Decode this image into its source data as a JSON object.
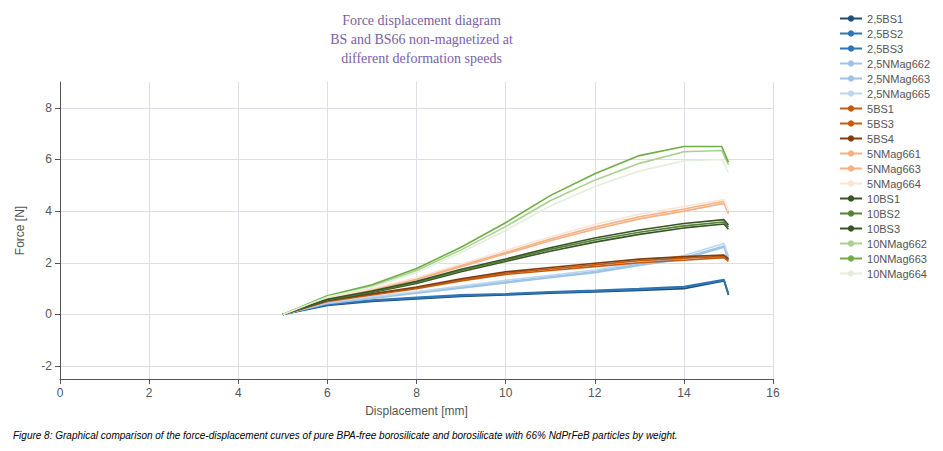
{
  "chart_data": {
    "type": "line",
    "title": "Force displacement diagram\nBS and BS66 non-magnetized at\ndifferent deformation speeds",
    "caption": "Figure 8: Graphical comparison of the force-displacement curves of pure BPA-free borosilicate and borosilicate with 66% NdPrFeB particles by weight.",
    "xlabel": "Displacement [mm]",
    "ylabel": "Force [N]",
    "xlim": [
      0,
      16
    ],
    "ylim": [
      -2.5,
      9
    ],
    "xticks": [
      0,
      2,
      4,
      6,
      8,
      10,
      12,
      14,
      16
    ],
    "yticks": [
      -2,
      0,
      2,
      4,
      6,
      8
    ],
    "grid": true,
    "legend": "upper right",
    "series": [
      {
        "name": "2,5BS1",
        "color": "#1F4E79",
        "x": [
          5.0,
          6.0,
          7.0,
          8.0,
          9.0,
          10.0,
          11.0,
          12.0,
          13.0,
          14.0,
          14.9,
          15.0
        ],
        "values": [
          0.0,
          0.35,
          0.5,
          0.6,
          0.7,
          0.75,
          0.82,
          0.87,
          0.93,
          1.0,
          1.3,
          0.75
        ]
      },
      {
        "name": "2,5BS2",
        "color": "#2E75B6",
        "x": [
          5.0,
          6.0,
          7.0,
          8.0,
          9.0,
          10.0,
          11.0,
          12.0,
          13.0,
          14.0,
          14.9,
          15.0
        ],
        "values": [
          0.0,
          0.38,
          0.53,
          0.63,
          0.73,
          0.78,
          0.85,
          0.9,
          0.97,
          1.05,
          1.32,
          0.78
        ]
      },
      {
        "name": "2,5BS3",
        "color": "#2F75B6",
        "x": [
          5.0,
          6.0,
          7.0,
          8.0,
          9.0,
          10.0,
          11.0,
          12.0,
          13.0,
          14.0,
          14.9,
          15.0
        ],
        "values": [
          0.0,
          0.4,
          0.56,
          0.66,
          0.76,
          0.8,
          0.88,
          0.93,
          1.0,
          1.08,
          1.35,
          0.8
        ]
      },
      {
        "name": "2,5NMag662",
        "color": "#9DC3E6",
        "x": [
          5.0,
          6.0,
          7.0,
          8.0,
          9.0,
          10.0,
          11.0,
          12.0,
          13.0,
          14.0,
          14.9,
          15.0
        ],
        "values": [
          0.0,
          0.42,
          0.62,
          0.82,
          1.02,
          1.22,
          1.42,
          1.62,
          1.9,
          2.15,
          2.6,
          2.1
        ]
      },
      {
        "name": "2,5NMag663",
        "color": "#9DC3E6",
        "x": [
          5.0,
          6.0,
          7.0,
          8.0,
          9.0,
          10.0,
          11.0,
          12.0,
          13.0,
          14.0,
          14.9,
          15.0
        ],
        "values": [
          0.0,
          0.44,
          0.65,
          0.85,
          1.05,
          1.26,
          1.46,
          1.66,
          1.95,
          2.2,
          2.65,
          2.15
        ]
      },
      {
        "name": "2,5NMag665",
        "color": "#BDD7EE",
        "x": [
          5.0,
          6.0,
          7.0,
          8.0,
          9.0,
          10.0,
          11.0,
          12.0,
          13.0,
          14.0,
          14.9,
          15.0
        ],
        "values": [
          0.0,
          0.46,
          0.68,
          0.88,
          1.1,
          1.32,
          1.52,
          1.72,
          2.0,
          2.28,
          2.75,
          2.25
        ]
      },
      {
        "name": "5BS1",
        "color": "#C55A11",
        "x": [
          5.0,
          6.0,
          7.0,
          8.0,
          9.0,
          10.0,
          11.0,
          12.0,
          13.0,
          14.0,
          14.9,
          15.0
        ],
        "values": [
          0.0,
          0.5,
          0.75,
          1.0,
          1.3,
          1.55,
          1.7,
          1.85,
          2.0,
          2.1,
          2.2,
          2.05
        ]
      },
      {
        "name": "5BS3",
        "color": "#C55A11",
        "x": [
          5.0,
          6.0,
          7.0,
          8.0,
          9.0,
          10.0,
          11.0,
          12.0,
          13.0,
          14.0,
          14.9,
          15.0
        ],
        "values": [
          0.0,
          0.52,
          0.78,
          1.03,
          1.34,
          1.6,
          1.76,
          1.92,
          2.08,
          2.18,
          2.25,
          2.1
        ]
      },
      {
        "name": "5BS4",
        "color": "#843C0C",
        "x": [
          5.0,
          6.0,
          7.0,
          8.0,
          9.0,
          10.0,
          11.0,
          12.0,
          13.0,
          14.0,
          14.9,
          15.0
        ],
        "values": [
          0.0,
          0.54,
          0.8,
          1.06,
          1.38,
          1.65,
          1.82,
          1.98,
          2.14,
          2.24,
          2.3,
          2.15
        ]
      },
      {
        "name": "5NMag661",
        "color": "#F4B183",
        "x": [
          5.0,
          6.0,
          7.0,
          8.0,
          9.0,
          10.0,
          11.0,
          12.0,
          13.0,
          14.0,
          14.9,
          15.0
        ],
        "values": [
          0.0,
          0.6,
          0.95,
          1.35,
          1.85,
          2.35,
          2.85,
          3.3,
          3.7,
          4.0,
          4.3,
          3.9
        ]
      },
      {
        "name": "5NMag663",
        "color": "#F4B183",
        "x": [
          5.0,
          6.0,
          7.0,
          8.0,
          9.0,
          10.0,
          11.0,
          12.0,
          13.0,
          14.0,
          14.9,
          15.0
        ],
        "values": [
          0.0,
          0.62,
          0.98,
          1.38,
          1.9,
          2.4,
          2.92,
          3.38,
          3.78,
          4.08,
          4.38,
          3.95
        ]
      },
      {
        "name": "5NMag664",
        "color": "#FCE4D6",
        "x": [
          5.0,
          6.0,
          7.0,
          8.0,
          9.0,
          10.0,
          11.0,
          12.0,
          13.0,
          14.0,
          14.9,
          15.0
        ],
        "values": [
          0.0,
          0.64,
          1.0,
          1.42,
          1.95,
          2.48,
          3.0,
          3.48,
          3.88,
          4.18,
          4.45,
          4.0
        ]
      },
      {
        "name": "10BS1",
        "color": "#375623",
        "x": [
          5.0,
          6.0,
          7.0,
          8.0,
          9.0,
          10.0,
          11.0,
          12.0,
          13.0,
          14.0,
          14.9,
          15.0
        ],
        "values": [
          0.0,
          0.55,
          0.85,
          1.2,
          1.65,
          2.05,
          2.45,
          2.8,
          3.1,
          3.35,
          3.5,
          3.3
        ]
      },
      {
        "name": "10BS2",
        "color": "#538135",
        "x": [
          5.0,
          6.0,
          7.0,
          8.0,
          9.0,
          10.0,
          11.0,
          12.0,
          13.0,
          14.0,
          14.9,
          15.0
        ],
        "values": [
          0.0,
          0.57,
          0.88,
          1.24,
          1.7,
          2.1,
          2.52,
          2.88,
          3.18,
          3.43,
          3.58,
          3.38
        ]
      },
      {
        "name": "10BS3",
        "color": "#375623",
        "x": [
          5.0,
          6.0,
          7.0,
          8.0,
          9.0,
          10.0,
          11.0,
          12.0,
          13.0,
          14.0,
          14.9,
          15.0
        ],
        "values": [
          0.0,
          0.59,
          0.91,
          1.28,
          1.75,
          2.15,
          2.58,
          2.96,
          3.27,
          3.52,
          3.67,
          3.46
        ]
      },
      {
        "name": "10NMag662",
        "color": "#A9D18E",
        "x": [
          5.0,
          6.0,
          7.0,
          8.0,
          9.0,
          10.0,
          11.0,
          12.0,
          13.0,
          14.0,
          14.85,
          15.0
        ],
        "values": [
          0.0,
          0.7,
          1.1,
          1.7,
          2.5,
          3.4,
          4.4,
          5.2,
          5.85,
          6.3,
          6.35,
          5.8
        ]
      },
      {
        "name": "10NMag663",
        "color": "#70AD47",
        "x": [
          5.0,
          6.0,
          7.0,
          8.0,
          9.0,
          10.0,
          11.0,
          12.0,
          13.0,
          14.0,
          14.85,
          15.0
        ],
        "values": [
          0.0,
          0.72,
          1.15,
          1.78,
          2.6,
          3.55,
          4.6,
          5.45,
          6.15,
          6.5,
          6.5,
          5.9
        ]
      },
      {
        "name": "10NMag664",
        "color": "#E2EFDA",
        "x": [
          5.0,
          6.0,
          7.0,
          8.0,
          9.0,
          10.0,
          11.0,
          12.0,
          13.0,
          14.0,
          14.85,
          15.0
        ],
        "values": [
          0.0,
          0.68,
          1.05,
          1.62,
          2.4,
          3.25,
          4.2,
          4.95,
          5.55,
          5.95,
          6.0,
          5.5
        ]
      }
    ]
  }
}
